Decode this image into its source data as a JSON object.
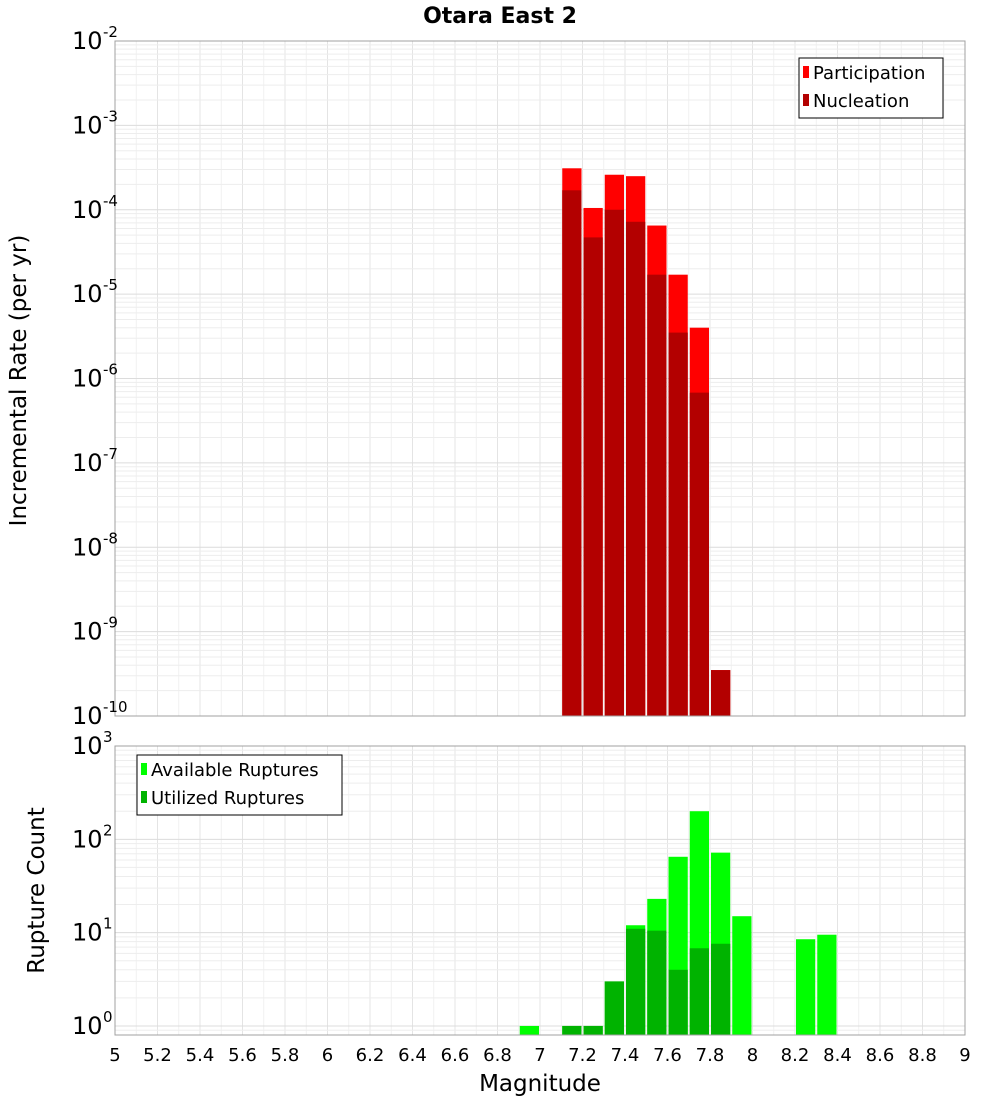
{
  "chart_data": [
    {
      "type": "bar",
      "title": "Otara East 2",
      "xlabel": "Magnitude",
      "ylabel": "Incremental Rate (per yr)",
      "xlim": [
        5,
        9
      ],
      "ylim": [
        1e-10,
        0.01
      ],
      "yscale": "log",
      "grid": true,
      "legend_position": "top-right",
      "bin_width": 0.1,
      "ytick_exponents": [
        "-10",
        "-9",
        "-8",
        "-7",
        "-6",
        "-5",
        "-4",
        "-3",
        "-2"
      ],
      "series": [
        {
          "name": "Participation",
          "color": "#ff0000",
          "x": [
            7.15,
            7.25,
            7.35,
            7.45,
            7.55,
            7.65,
            7.75,
            7.85
          ],
          "values": [
            0.00031,
            0.000105,
            0.00026,
            0.00025,
            6.5e-05,
            1.7e-05,
            4e-06,
            3.5e-10
          ]
        },
        {
          "name": "Nucleation",
          "color": "#b30000",
          "x": [
            7.15,
            7.25,
            7.35,
            7.45,
            7.55,
            7.65,
            7.75,
            7.85
          ],
          "values": [
            0.00017,
            4.7e-05,
            0.0001,
            7.2e-05,
            1.7e-05,
            3.5e-06,
            6.8e-07,
            3.5e-10
          ]
        }
      ]
    },
    {
      "type": "bar",
      "xlabel": "Magnitude",
      "ylabel": "Rupture Count",
      "xlim": [
        5,
        9
      ],
      "ylim": [
        0.8,
        1000
      ],
      "yscale": "log",
      "grid": true,
      "legend_position": "top-left",
      "bin_width": 0.1,
      "ytick_exponents": [
        "0",
        "1",
        "2",
        "3"
      ],
      "xticks": [
        "5",
        "5.2",
        "5.4",
        "5.6",
        "5.8",
        "6",
        "6.2",
        "6.4",
        "6.6",
        "6.8",
        "7",
        "7.2",
        "7.4",
        "7.6",
        "7.8",
        "8",
        "8.2",
        "8.4",
        "8.6",
        "8.8",
        "9"
      ],
      "series": [
        {
          "name": "Available Ruptures",
          "color": "#00ff00",
          "x": [
            6.95,
            7.15,
            7.25,
            7.35,
            7.45,
            7.55,
            7.65,
            7.75,
            7.85,
            7.95,
            8.25,
            8.35
          ],
          "values": [
            1,
            1,
            1,
            3,
            12,
            23,
            65,
            200,
            72,
            15,
            8.5,
            9.5
          ]
        },
        {
          "name": "Utilized Ruptures",
          "color": "#00b300",
          "x": [
            7.15,
            7.25,
            7.35,
            7.45,
            7.55,
            7.65,
            7.75,
            7.85
          ],
          "values": [
            1,
            1,
            3,
            11,
            10.5,
            4,
            6.8,
            7.6
          ]
        }
      ]
    }
  ]
}
